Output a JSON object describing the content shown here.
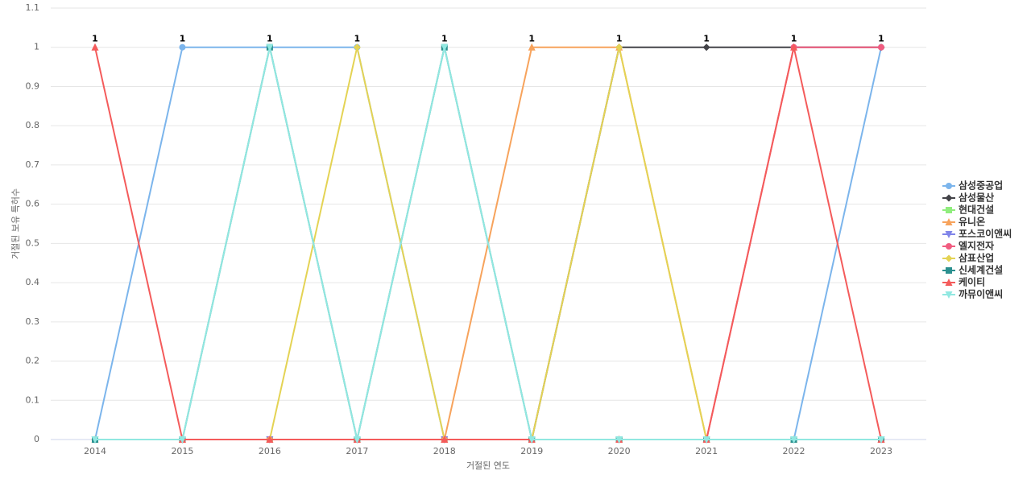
{
  "chart_data": {
    "type": "line",
    "x_label": "거절된 연도",
    "y_label": "거절된 보유 특허수",
    "categories": [
      "2014",
      "2015",
      "2016",
      "2017",
      "2018",
      "2019",
      "2020",
      "2021",
      "2022",
      "2023"
    ],
    "ylim": [
      0,
      1.1
    ],
    "yticks": [
      0,
      0.1,
      0.2,
      0.3,
      0.4,
      0.5,
      0.6,
      0.7,
      0.8,
      0.9,
      1,
      1.1
    ],
    "grid": true,
    "series": [
      {
        "name": "삼성중공업",
        "color": "#7cb5ec",
        "marker": "circle",
        "values": [
          0,
          1,
          1,
          1,
          0,
          0,
          0,
          0,
          0,
          1
        ]
      },
      {
        "name": "삼성물산",
        "color": "#434348",
        "marker": "diamond",
        "values": [
          0,
          0,
          0,
          0,
          0,
          0,
          1,
          1,
          1,
          1
        ]
      },
      {
        "name": "현대건설",
        "color": "#90ed7d",
        "marker": "square",
        "values": [
          0,
          0,
          0,
          0,
          0,
          0,
          0,
          0,
          0,
          0
        ]
      },
      {
        "name": "유니온",
        "color": "#f7a35c",
        "marker": "triangle",
        "values": [
          0,
          0,
          0,
          0,
          0,
          1,
          1,
          0,
          0,
          0
        ]
      },
      {
        "name": "포스코이앤씨",
        "color": "#8085e9",
        "marker": "triangle-down",
        "values": [
          0,
          0,
          0,
          0,
          0,
          0,
          0,
          0,
          0,
          0
        ]
      },
      {
        "name": "엘지전자",
        "color": "#f15c80",
        "marker": "circle",
        "values": [
          0,
          0,
          0,
          0,
          0,
          0,
          0,
          0,
          1,
          1
        ]
      },
      {
        "name": "삼표산업",
        "color": "#e4d354",
        "marker": "diamond",
        "values": [
          0,
          0,
          0,
          1,
          0,
          0,
          1,
          0,
          0,
          0
        ]
      },
      {
        "name": "신세계건설",
        "color": "#2b908f",
        "marker": "square",
        "values": [
          0,
          0,
          1,
          0,
          1,
          0,
          0,
          0,
          0,
          0
        ]
      },
      {
        "name": "케이티",
        "color": "#f45b5b",
        "marker": "triangle",
        "values": [
          1,
          0,
          0,
          0,
          0,
          0,
          0,
          0,
          1,
          0
        ]
      },
      {
        "name": "까뮤이앤씨",
        "color": "#91e8e1",
        "marker": "triangle-down",
        "values": [
          0,
          0,
          1,
          0,
          1,
          0,
          0,
          0,
          0,
          0
        ]
      }
    ]
  }
}
